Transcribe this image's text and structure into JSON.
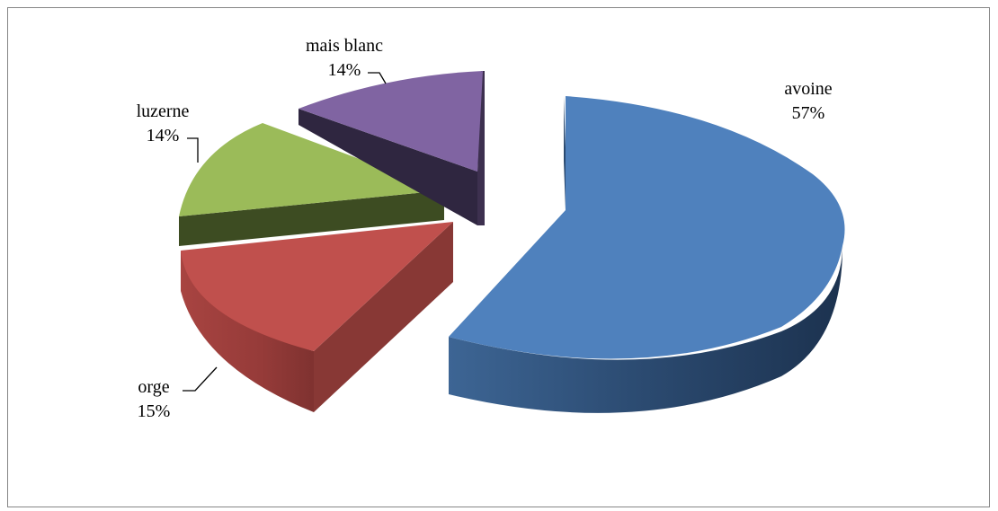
{
  "chart_data": {
    "type": "pie",
    "style": "3d-exploded",
    "title": "",
    "legend": "none",
    "slices": [
      {
        "label": "avoine",
        "percent_label": "57%",
        "value": 57,
        "color": "#4f81bd"
      },
      {
        "label": "orge",
        "percent_label": "15%",
        "value": 15,
        "color": "#c0504d"
      },
      {
        "label": "luzerne",
        "percent_label": "14%",
        "value": 14,
        "color": "#9bbb59"
      },
      {
        "label": "mais blanc",
        "percent_label": "14%",
        "value": 14,
        "color": "#8064a2"
      }
    ]
  }
}
